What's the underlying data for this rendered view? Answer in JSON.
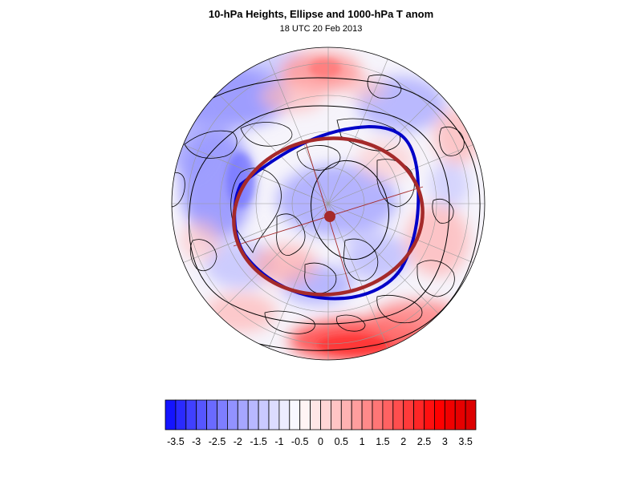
{
  "title": "10-hPa Heights, Ellipse and 1000-hPa T anom",
  "subtitle": "18 UTC 20 Feb 2013",
  "colors": {
    "ellipse": "#a52a2a",
    "vortex_edge": "#0000c8",
    "height_contours": "#000000",
    "coastline": "#000000",
    "graticule": "#9a9a9a"
  },
  "colorbar": {
    "min": -3.75,
    "max": 3.75,
    "step": 0.25,
    "labels": [
      "-3.5",
      "-3",
      "-2.5",
      "-2",
      "-1.5",
      "-1",
      "-0.5",
      "0",
      "0.5",
      "1",
      "1.5",
      "2",
      "2.5",
      "3",
      "3.5"
    ],
    "colors": [
      "#1414ff",
      "#2a2aff",
      "#4040ff",
      "#5656ff",
      "#6a6aff",
      "#7e7eff",
      "#9292ff",
      "#a6a6ff",
      "#b8b8ff",
      "#cacaff",
      "#dcdcff",
      "#ececff",
      "#f8f8ff",
      "#fff4f4",
      "#ffe6e6",
      "#ffd6d6",
      "#ffc4c4",
      "#ffb2b2",
      "#ff9e9e",
      "#ff8a8a",
      "#ff7676",
      "#ff6262",
      "#ff4e4e",
      "#ff3a3a",
      "#ff2626",
      "#ff1010",
      "#ff0000",
      "#f00000",
      "#e60000",
      "#dd0000"
    ]
  }
}
